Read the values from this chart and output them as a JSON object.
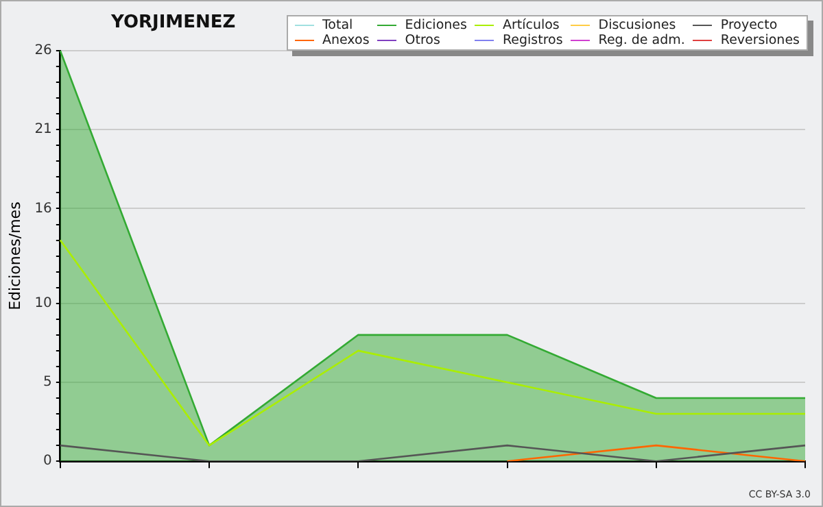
{
  "chart_data": {
    "type": "line",
    "title": "YORJIMENEZ",
    "ylabel": "Ediciones/mes",
    "categories": [
      null,
      null,
      null,
      null,
      null,
      null
    ],
    "series": [
      {
        "name": "Total",
        "color": "#a0e0e0",
        "values": [
          null,
          null,
          null,
          null,
          null,
          null
        ]
      },
      {
        "name": "Ediciones",
        "type": "area",
        "color": "#33aa33",
        "values": [
          26,
          1,
          8,
          8,
          4,
          4
        ]
      },
      {
        "name": "Artículos",
        "color": "#aaee00",
        "values": [
          14,
          1,
          7,
          5,
          3,
          3
        ]
      },
      {
        "name": "Discusiones",
        "color": "#ffcc44",
        "values": [
          null,
          null,
          null,
          null,
          null,
          null
        ]
      },
      {
        "name": "Proyecto",
        "color": "#555555",
        "values": [
          1,
          0,
          0,
          1,
          0,
          1
        ]
      },
      {
        "name": "Anexos",
        "color": "#ff6600",
        "values": [
          null,
          null,
          null,
          0,
          1,
          0
        ]
      },
      {
        "name": "Otros",
        "color": "#8040c0",
        "values": [
          null,
          null,
          null,
          null,
          null,
          null
        ]
      },
      {
        "name": "Registros",
        "color": "#8080f0",
        "values": [
          null,
          null,
          null,
          null,
          null,
          null
        ]
      },
      {
        "name": "Reg. de adm.",
        "color": "#d040d0",
        "values": [
          null,
          null,
          null,
          null,
          null,
          null
        ]
      },
      {
        "name": "Reversiones",
        "color": "#e04040",
        "values": [
          null,
          null,
          null,
          null,
          null,
          null
        ]
      }
    ],
    "ylim": [
      0,
      26
    ],
    "yticks": [
      0,
      {
        "value": 1,
        "label": null
      },
      {
        "value": 2,
        "label": null
      },
      {
        "value": 3,
        "label": null
      },
      {
        "value": 4,
        "label": null
      },
      5,
      {
        "value": 6,
        "label": null
      },
      {
        "value": 7,
        "label": null
      },
      {
        "value": 8,
        "label": null
      },
      {
        "value": 9,
        "label": null
      },
      10,
      {
        "value": 11,
        "label": null
      },
      {
        "value": 12,
        "label": null
      },
      {
        "value": 13,
        "label": null
      },
      {
        "value": 14,
        "label": null
      },
      {
        "value": 15,
        "label": null
      },
      16,
      {
        "value": 17,
        "label": null
      },
      {
        "value": 18,
        "label": null
      },
      {
        "value": 19,
        "label": null
      },
      {
        "value": 20,
        "label": null
      },
      21,
      {
        "value": 22,
        "label": null
      },
      {
        "value": 23,
        "label": null
      },
      {
        "value": 24,
        "label": null
      },
      {
        "value": 25,
        "label": null
      },
      26
    ],
    "grid": "y",
    "legend": "top right",
    "marker": "none",
    "line_style": "solid",
    "annotations": [
      "CC BY-SA 3.0"
    ]
  }
}
